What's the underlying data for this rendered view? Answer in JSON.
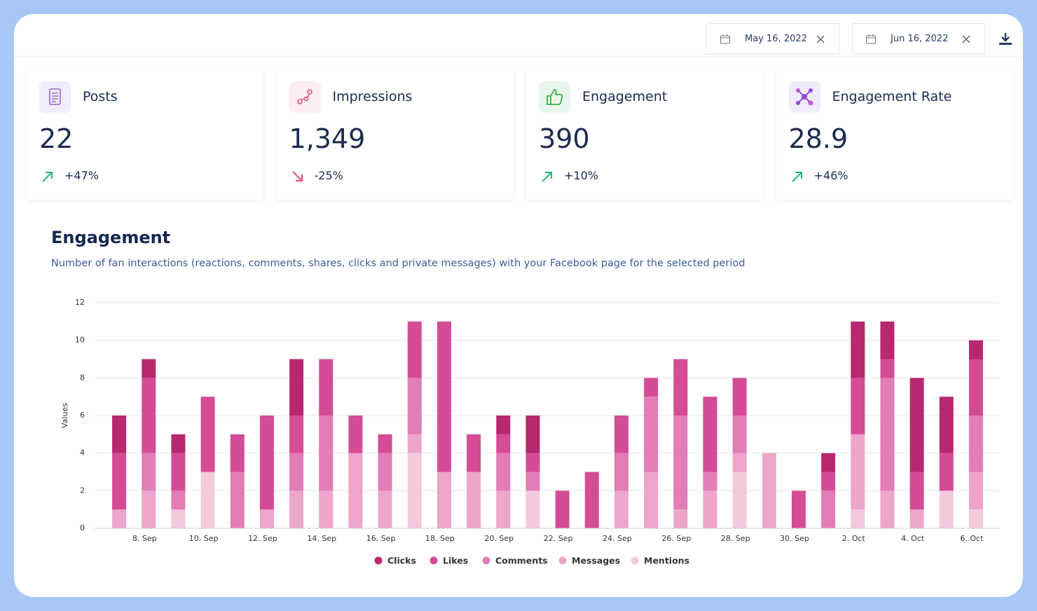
{
  "header": {
    "start_date": "May 16, 2022",
    "end_date": "Jun 16, 2022"
  },
  "cards": [
    {
      "title": "Posts",
      "value": "22",
      "change": "+47%"
    },
    {
      "title": "Impressions",
      "value": "1,349",
      "change": "-25%"
    },
    {
      "title": "Engagement",
      "value": "390",
      "change": "+10%"
    },
    {
      "title": "Engagement Rate",
      "value": "28.9",
      "change": "+46%"
    }
  ],
  "chart_data": {
    "type": "stacked_bar",
    "title": "Engagement",
    "subtitle": "Number of fan interactions (reactions, comments, shares, clicks and private messages) with your Facebook page for the selected period",
    "y_label": "Values",
    "categories": [
      null,
      "8. Sep",
      null,
      "10. Sep",
      null,
      "12. Sep",
      null,
      "14. Sep",
      null,
      "16. Sep",
      null,
      "18. Sep",
      null,
      "20. Sep",
      null,
      "22. Sep",
      null,
      "24. Sep",
      null,
      "26. Sep",
      null,
      "28. Sep",
      null,
      "30. Sep",
      null,
      "2. Oct",
      null,
      "4. Oct",
      null,
      "6. Oct"
    ],
    "series": [
      {
        "name": "Clicks",
        "color": "#b8286f",
        "values": [
          2,
          1,
          1,
          0,
          0,
          0,
          3,
          0,
          0,
          0,
          0,
          0,
          0,
          1,
          2,
          0,
          0,
          0,
          0,
          0,
          0,
          0,
          0,
          0,
          1,
          3,
          2,
          5,
          3,
          1
        ]
      },
      {
        "name": "Likes",
        "color": "#d54c96",
        "values": [
          3,
          4,
          2,
          4,
          2,
          5,
          2,
          3,
          2,
          1,
          3,
          8,
          2,
          1,
          1,
          2,
          3,
          2,
          1,
          3,
          4,
          2,
          0,
          2,
          1,
          3,
          1,
          2,
          2,
          3
        ]
      },
      {
        "name": "Comments",
        "color": "#e27db5",
        "values": [
          0,
          2,
          1,
          0,
          3,
          0,
          2,
          4,
          0,
          2,
          3,
          0,
          0,
          2,
          1,
          0,
          0,
          2,
          4,
          5,
          1,
          2,
          0,
          0,
          2,
          0,
          6,
          0,
          0,
          3
        ]
      },
      {
        "name": "Messages",
        "color": "#eda5cc",
        "values": [
          1,
          2,
          0,
          0,
          0,
          1,
          2,
          2,
          4,
          2,
          1,
          3,
          3,
          2,
          0,
          0,
          0,
          2,
          3,
          1,
          2,
          1,
          4,
          0,
          0,
          4,
          2,
          1,
          0,
          2
        ]
      },
      {
        "name": "Mentions",
        "color": "#f3c9de",
        "values": [
          0,
          0,
          1,
          3,
          0,
          0,
          0,
          0,
          0,
          0,
          4,
          0,
          0,
          0,
          2,
          0,
          0,
          0,
          0,
          0,
          0,
          3,
          0,
          0,
          0,
          1,
          0,
          0,
          2,
          1
        ]
      }
    ],
    "ylim": [
      0,
      12
    ],
    "yticks": [
      0,
      2,
      4,
      6,
      8,
      10,
      12
    ],
    "grid": true
  }
}
